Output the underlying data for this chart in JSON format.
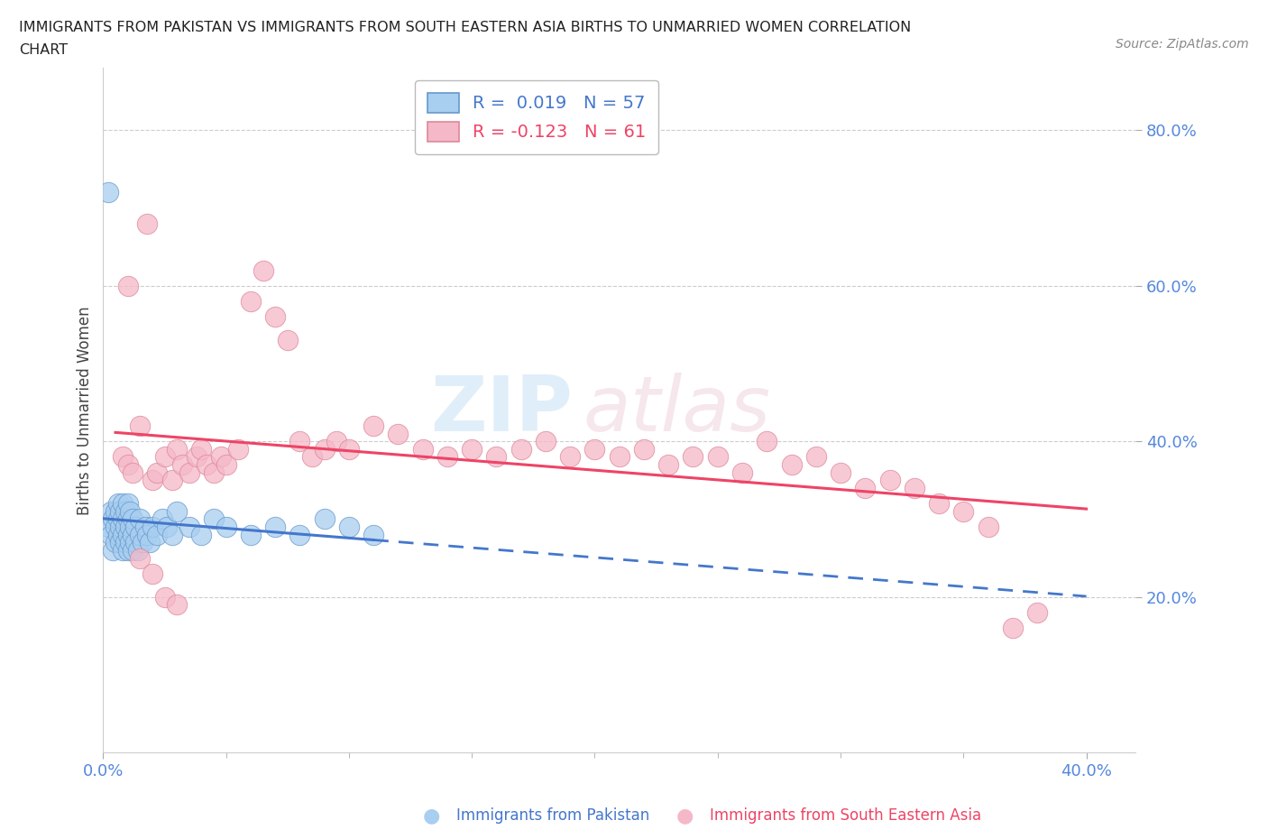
{
  "title_line1": "IMMIGRANTS FROM PAKISTAN VS IMMIGRANTS FROM SOUTH EASTERN ASIA BIRTHS TO UNMARRIED WOMEN CORRELATION",
  "title_line2": "CHART",
  "source": "Source: ZipAtlas.com",
  "ylabel": "Births to Unmarried Women",
  "xlim": [
    0.0,
    0.42
  ],
  "ylim": [
    0.0,
    0.88
  ],
  "color_blue": "#a8cef0",
  "color_pink": "#f5b8c8",
  "edge_blue": "#6699cc",
  "edge_pink": "#dd8899",
  "line_blue_color": "#4477cc",
  "line_pink_color": "#ee4466",
  "legend_r_blue": "R =  0.019   N = 57",
  "legend_r_pink": "R = -0.123   N = 61",
  "watermark_zip": "ZIP",
  "watermark_atlas": "atlas",
  "pakistan_x": [
    0.002,
    0.003,
    0.003,
    0.004,
    0.004,
    0.005,
    0.005,
    0.005,
    0.006,
    0.006,
    0.006,
    0.007,
    0.007,
    0.007,
    0.008,
    0.008,
    0.008,
    0.008,
    0.009,
    0.009,
    0.009,
    0.01,
    0.01,
    0.01,
    0.01,
    0.011,
    0.011,
    0.011,
    0.012,
    0.012,
    0.012,
    0.013,
    0.013,
    0.014,
    0.015,
    0.015,
    0.016,
    0.017,
    0.018,
    0.019,
    0.02,
    0.022,
    0.024,
    0.026,
    0.028,
    0.03,
    0.035,
    0.04,
    0.045,
    0.05,
    0.06,
    0.07,
    0.08,
    0.09,
    0.1,
    0.11,
    0.002
  ],
  "pakistan_y": [
    0.29,
    0.28,
    0.31,
    0.26,
    0.3,
    0.27,
    0.29,
    0.31,
    0.28,
    0.3,
    0.32,
    0.27,
    0.29,
    0.31,
    0.26,
    0.28,
    0.3,
    0.32,
    0.27,
    0.29,
    0.31,
    0.26,
    0.28,
    0.3,
    0.32,
    0.27,
    0.29,
    0.31,
    0.26,
    0.28,
    0.3,
    0.27,
    0.29,
    0.26,
    0.28,
    0.3,
    0.27,
    0.29,
    0.28,
    0.27,
    0.29,
    0.28,
    0.3,
    0.29,
    0.28,
    0.31,
    0.29,
    0.28,
    0.3,
    0.29,
    0.28,
    0.29,
    0.28,
    0.3,
    0.29,
    0.28,
    0.72
  ],
  "sea_x": [
    0.008,
    0.01,
    0.012,
    0.015,
    0.018,
    0.02,
    0.022,
    0.025,
    0.028,
    0.03,
    0.032,
    0.035,
    0.038,
    0.04,
    0.042,
    0.045,
    0.048,
    0.05,
    0.055,
    0.06,
    0.065,
    0.07,
    0.075,
    0.08,
    0.085,
    0.09,
    0.095,
    0.1,
    0.11,
    0.12,
    0.13,
    0.14,
    0.15,
    0.16,
    0.17,
    0.18,
    0.19,
    0.2,
    0.21,
    0.22,
    0.23,
    0.24,
    0.25,
    0.26,
    0.27,
    0.28,
    0.29,
    0.3,
    0.31,
    0.32,
    0.33,
    0.34,
    0.35,
    0.36,
    0.37,
    0.38,
    0.01,
    0.015,
    0.02,
    0.025,
    0.03
  ],
  "sea_y": [
    0.38,
    0.37,
    0.36,
    0.42,
    0.68,
    0.35,
    0.36,
    0.38,
    0.35,
    0.39,
    0.37,
    0.36,
    0.38,
    0.39,
    0.37,
    0.36,
    0.38,
    0.37,
    0.39,
    0.58,
    0.62,
    0.56,
    0.53,
    0.4,
    0.38,
    0.39,
    0.4,
    0.39,
    0.42,
    0.41,
    0.39,
    0.38,
    0.39,
    0.38,
    0.39,
    0.4,
    0.38,
    0.39,
    0.38,
    0.39,
    0.37,
    0.38,
    0.38,
    0.36,
    0.4,
    0.37,
    0.38,
    0.36,
    0.34,
    0.35,
    0.34,
    0.32,
    0.31,
    0.29,
    0.16,
    0.18,
    0.6,
    0.25,
    0.23,
    0.2,
    0.19
  ]
}
